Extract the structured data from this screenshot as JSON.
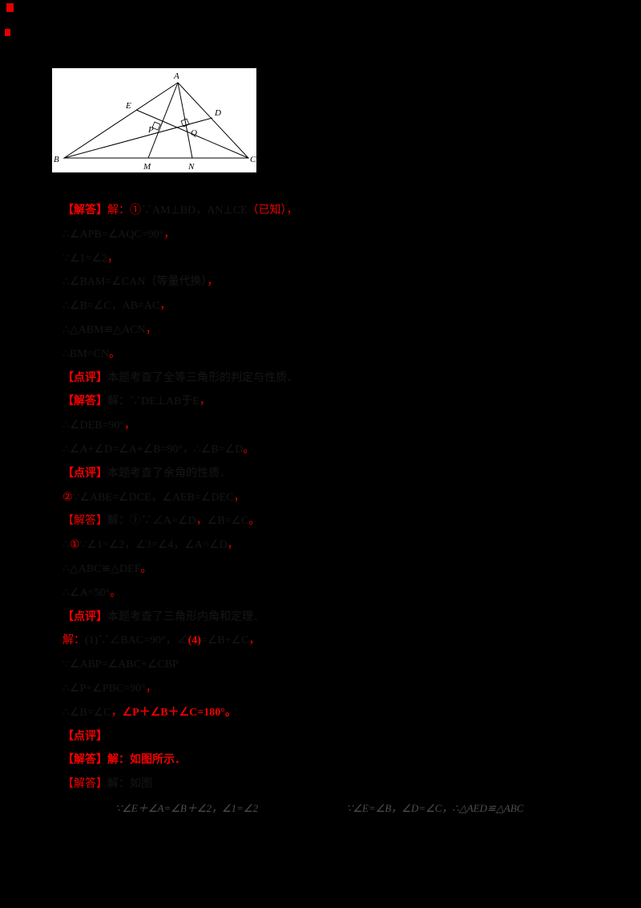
{
  "colors": {
    "background": "#000000",
    "accent_red": "#f40000",
    "body_text": "#161616",
    "faint_text": "#4f4f4f",
    "figure_background": "#ffffff"
  },
  "figure": {
    "labels": {
      "A": "A",
      "B": "B",
      "C": "C",
      "D": "D",
      "E": "E",
      "M": "M",
      "N": "N",
      "P": "P",
      "Q": "Q"
    }
  },
  "lines": [
    {
      "segments": [
        {
          "t": "【解答】",
          "s": "redbold"
        },
        {
          "t": "解：",
          "s": "red"
        },
        {
          "t": "①",
          "s": "red"
        },
        {
          "t": "∵AM⊥BD，AN⊥CE",
          "s": "dark"
        },
        {
          "t": "（已知），",
          "s": "red"
        }
      ]
    },
    {
      "segments": [
        {
          "t": "∴∠APB=∠AQC=90°",
          "s": "dark"
        },
        {
          "t": "，",
          "s": "red"
        }
      ]
    },
    {
      "segments": [
        {
          "t": "∵∠1=∠2",
          "s": "dark"
        },
        {
          "t": "，",
          "s": "red"
        }
      ]
    },
    {
      "segments": [
        {
          "t": "∴∠BAM=∠CAN（等量代换）",
          "s": "dark"
        },
        {
          "t": "，",
          "s": "red"
        }
      ]
    },
    {
      "segments": [
        {
          "t": "∴∠B=∠C，AB=AC",
          "s": "dark"
        },
        {
          "t": "，",
          "s": "red"
        }
      ]
    },
    {
      "segments": [
        {
          "t": "∴△ABM≌△ACN",
          "s": "dark"
        },
        {
          "t": "，",
          "s": "red"
        }
      ]
    },
    {
      "segments": [
        {
          "t": "∴BM=CN",
          "s": "dark"
        },
        {
          "t": "。",
          "s": "red"
        }
      ]
    },
    {
      "segments": [
        {
          "t": "【点评】",
          "s": "redbold"
        },
        {
          "t": "本题考查了全等三角形的判定与性质．",
          "s": "dark"
        }
      ]
    },
    {
      "segments": [
        {
          "t": "【解答】",
          "s": "redbold"
        },
        {
          "t": "解：∵DE⊥AB于E",
          "s": "dark"
        },
        {
          "t": "，",
          "s": "red"
        }
      ]
    },
    {
      "segments": [
        {
          "t": "∴∠DEB=90°",
          "s": "dark"
        },
        {
          "t": "，",
          "s": "red"
        }
      ]
    },
    {
      "segments": [
        {
          "t": "∴∠A+∠D=∠A+∠B=90°，∴∠B=∠D",
          "s": "dark"
        },
        {
          "t": "。",
          "s": "red"
        }
      ]
    },
    {
      "segments": [
        {
          "t": "【点评】",
          "s": "redbold"
        },
        {
          "t": "本题考查了余角的性质．",
          "s": "dark"
        }
      ]
    },
    {
      "segments": [
        {
          "t": "②",
          "s": "red"
        },
        {
          "t": "∵∠ABE=∠DCE，∠AEB=∠DEC",
          "s": "dark"
        },
        {
          "t": "，",
          "s": "red"
        }
      ]
    },
    {
      "segments": [
        {
          "t": "【解答】",
          "s": "red"
        },
        {
          "t": "解：①∵∠A=∠D",
          "s": "dark"
        },
        {
          "t": "，",
          "s": "red"
        },
        {
          "t": "∠B=∠C",
          "s": "dark"
        },
        {
          "t": "。",
          "s": "red"
        }
      ]
    },
    {
      "segments": [
        {
          "t": "∴",
          "s": "dark"
        },
        {
          "t": "①",
          "s": "red"
        },
        {
          "t": "∵∠1=∠2，∠3=∠4，∠A=∠D",
          "s": "dark"
        },
        {
          "t": "，",
          "s": "red"
        }
      ]
    },
    {
      "segments": [
        {
          "t": "∴△ABC≌△DEF",
          "s": "dark"
        },
        {
          "t": "。",
          "s": "red"
        }
      ]
    },
    {
      "segments": [
        {
          "t": "∴∠A=50°",
          "s": "dark"
        },
        {
          "t": "。",
          "s": "red"
        }
      ]
    },
    {
      "segments": [
        {
          "t": "【点评】",
          "s": "redbold"
        },
        {
          "t": "本题考查了三角形内角和定理．",
          "s": "dark"
        }
      ]
    },
    {
      "segments": [
        {
          "t": "解：",
          "s": "red"
        },
        {
          "t": "(1)∵∠BAC=90°，∠",
          "s": "dark"
        },
        {
          "t": "(4)",
          "s": "redbold"
        },
        {
          "t": "=∠B+∠C",
          "s": "dark"
        },
        {
          "t": "，",
          "s": "red"
        }
      ]
    },
    {
      "segments": [
        {
          "t": "∵∠ABP=∠ABC+∠CBP",
          "s": "dark"
        }
      ]
    },
    {
      "segments": [
        {
          "t": "∴∠P+∠PBC=90°",
          "s": "dark"
        },
        {
          "t": "，",
          "s": "red"
        }
      ]
    },
    {
      "segments": [
        {
          "t": "∴∠B=∠C",
          "s": "dark"
        },
        {
          "t": "，",
          "s": "red"
        },
        {
          "t": "∠P＋∠B＋∠C=180°。",
          "s": "redbold"
        }
      ]
    },
    {
      "segments": [
        {
          "t": "【点评】",
          "s": "redbold"
        }
      ]
    },
    {
      "segments": [
        {
          "t": "【解答】解：如图所示．",
          "s": "redbold"
        }
      ]
    },
    {
      "segments": [
        {
          "t": "【解答】",
          "s": "red"
        },
        {
          "t": "解：如图",
          "s": "dark"
        }
      ]
    },
    {
      "segments": [
        {
          "t": "∵∠E＋∠A=∠B＋∠2，∠1=∠2",
          "s": "gray indent"
        },
        {
          "t": "∵∠E=∠B，∠D=∠C，∴△AED≌△ABC",
          "s": "gray gap"
        }
      ]
    }
  ]
}
